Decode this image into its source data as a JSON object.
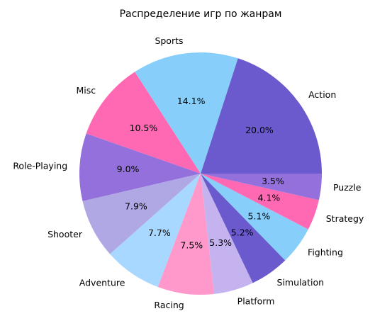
{
  "chart_data": {
    "type": "pie",
    "title": "Распределение игр по жанрам",
    "start_angle_deg": 0,
    "direction": "counterclockwise",
    "slices": [
      {
        "label": "Action",
        "value": 20.0,
        "pct_label": "20.0%",
        "color": "#6A5ACD"
      },
      {
        "label": "Sports",
        "value": 14.1,
        "pct_label": "14.1%",
        "color": "#87CEFA"
      },
      {
        "label": "Misc",
        "value": 10.5,
        "pct_label": "10.5%",
        "color": "#FF69B4"
      },
      {
        "label": "Role-Playing",
        "value": 9.0,
        "pct_label": "9.0%",
        "color": "#9370DB"
      },
      {
        "label": "Shooter",
        "value": 7.9,
        "pct_label": "7.9%",
        "color": "#B0A8E4"
      },
      {
        "label": "Adventure",
        "value": 7.7,
        "pct_label": "7.7%",
        "color": "#A8D8FF"
      },
      {
        "label": "Racing",
        "value": 7.5,
        "pct_label": "7.5%",
        "color": "#FF99CC"
      },
      {
        "label": "Platform",
        "value": 5.3,
        "pct_label": "5.3%",
        "color": "#C5B3F0"
      },
      {
        "label": "Simulation",
        "value": 5.2,
        "pct_label": "5.2%",
        "color": "#6A5ACD"
      },
      {
        "label": "Fighting",
        "value": 5.1,
        "pct_label": "5.1%",
        "color": "#87CEFA"
      },
      {
        "label": "Strategy",
        "value": 4.1,
        "pct_label": "4.1%",
        "color": "#FF69B4"
      },
      {
        "label": "Puzzle",
        "value": 3.5,
        "pct_label": "3.5%",
        "color": "#9370DB"
      }
    ]
  }
}
